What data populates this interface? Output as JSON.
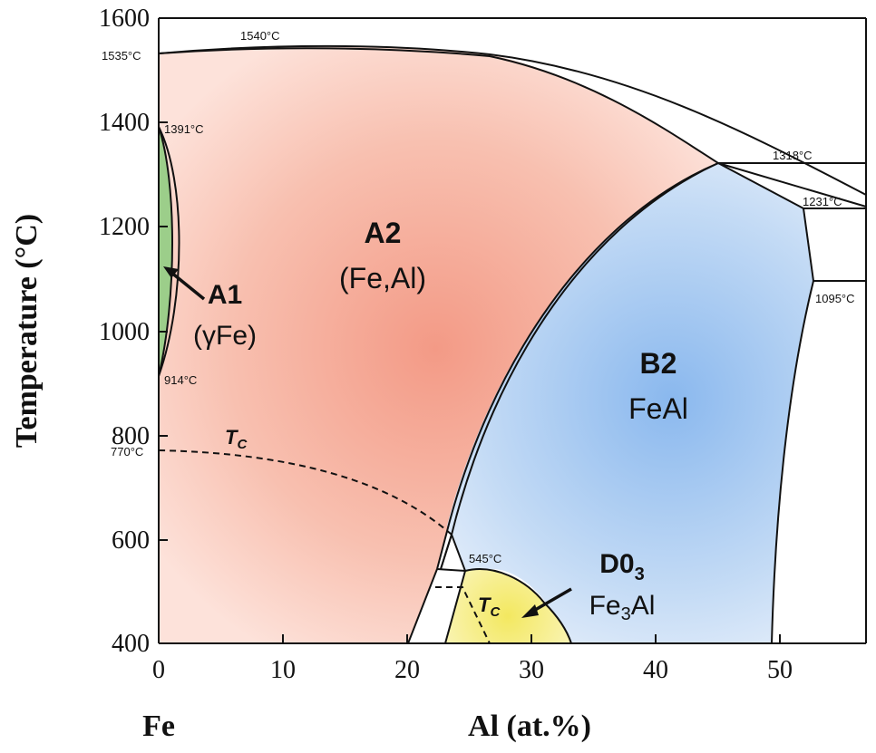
{
  "axes": {
    "y_title": "Temperature (°C)",
    "x_title": "Al (at.%)",
    "x_left_label": "Fe",
    "y_ticks": [
      "1600",
      "1400",
      "1200",
      "1000",
      "800",
      "600",
      "400"
    ],
    "x_ticks": [
      "0",
      "10",
      "20",
      "30",
      "40",
      "50"
    ],
    "x_range": [
      0,
      57
    ],
    "y_range": [
      400,
      1600
    ]
  },
  "temperatures": {
    "t1540": "1540°C",
    "t1535": "1535°C",
    "t1391": "1391°C",
    "t1318": "1318°C",
    "t1231": "1231°C",
    "t1095": "1095°C",
    "t914": "914°C",
    "t770": "770°C",
    "t545": "545°C"
  },
  "phases": {
    "a2": {
      "name": "A2",
      "formula": "(Fe,Al)"
    },
    "a1": {
      "name": "A1",
      "formula": "(γFe)"
    },
    "b2": {
      "name": "B2",
      "formula": "FeAl"
    },
    "d03": {
      "name": "D0",
      "name_sub": "3",
      "formula_pre": "Fe",
      "formula_sub": "3",
      "formula_post": "Al"
    }
  },
  "curie": {
    "label": "T",
    "sub": "C"
  },
  "colors": {
    "a2": "#f39a86",
    "a1": "#9cce8a",
    "b2": "#8ab8ee",
    "d03": "#f5ec7a"
  }
}
